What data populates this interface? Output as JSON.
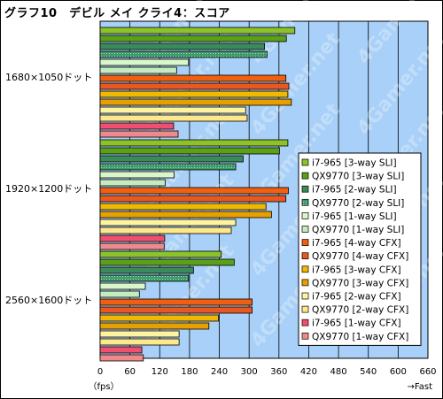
{
  "chart_data": {
    "type": "bar",
    "orientation": "horizontal",
    "title": "グラフ10　デビル メイ クライ4：スコア",
    "unit_label": "（fps）",
    "direction_label": "→Fast",
    "watermark": "4Gamer.net",
    "xlim": [
      0,
      660
    ],
    "x_ticks": [
      0,
      60,
      120,
      180,
      240,
      300,
      360,
      420,
      480,
      540,
      600,
      660
    ],
    "grid": true,
    "legend_position": "right",
    "categories": [
      "1680×1050ドット",
      "1920×1200ドット",
      "2560×1600ドット"
    ],
    "series": [
      {
        "name": "i7-965 [3-way SLI]",
        "color": "#8cc22a",
        "pattern": "solid",
        "values": [
          392,
          378,
          244
        ]
      },
      {
        "name": "QX9770 [3-way SLI]",
        "color": "#5aa018",
        "pattern": "solid",
        "values": [
          375,
          361,
          270
        ]
      },
      {
        "name": "i7-965 [2-way SLI]",
        "color": "#3a8a5a",
        "pattern": "solid",
        "values": [
          331,
          288,
          188
        ]
      },
      {
        "name": "QX9770 [2-way SLI]",
        "color": "#3e9a6a",
        "pattern": "dots",
        "values": [
          336,
          273,
          178
        ]
      },
      {
        "name": "i7-965 [1-way SLI]",
        "color": "#d9f7c8",
        "pattern": "solid",
        "values": [
          178,
          149,
          91
        ]
      },
      {
        "name": "QX9770 [1-way SLI]",
        "color": "#c4ecbc",
        "pattern": "solid",
        "values": [
          154,
          131,
          79
        ]
      },
      {
        "name": "i7-965 [4-way CFX]",
        "color": "#f06010",
        "pattern": "solid",
        "values": [
          374,
          379,
          306
        ]
      },
      {
        "name": "QX9770 [4-way CFX]",
        "color": "#e85820",
        "pattern": "solid",
        "values": [
          380,
          374,
          306
        ]
      },
      {
        "name": "i7-965 [3-way CFX]",
        "color": "#f0b800",
        "pattern": "solid",
        "values": [
          378,
          334,
          238
        ]
      },
      {
        "name": "QX9770 [3-way CFX]",
        "color": "#e8a000",
        "pattern": "solid",
        "values": [
          385,
          345,
          219
        ]
      },
      {
        "name": "i7-965 [2-way CFX]",
        "color": "#fff3a0",
        "pattern": "solid",
        "values": [
          293,
          273,
          159
        ]
      },
      {
        "name": "QX9770 [2-way CFX]",
        "color": "#ffe88a",
        "pattern": "solid",
        "values": [
          296,
          264,
          159
        ]
      },
      {
        "name": "i7-965 [1-way CFX]",
        "color": "#f0506e",
        "pattern": "solid",
        "values": [
          148,
          130,
          84
        ]
      },
      {
        "name": "QX9770 [1-way CFX]",
        "color": "#f08a8a",
        "pattern": "solid",
        "values": [
          157,
          129,
          87
        ]
      }
    ]
  }
}
